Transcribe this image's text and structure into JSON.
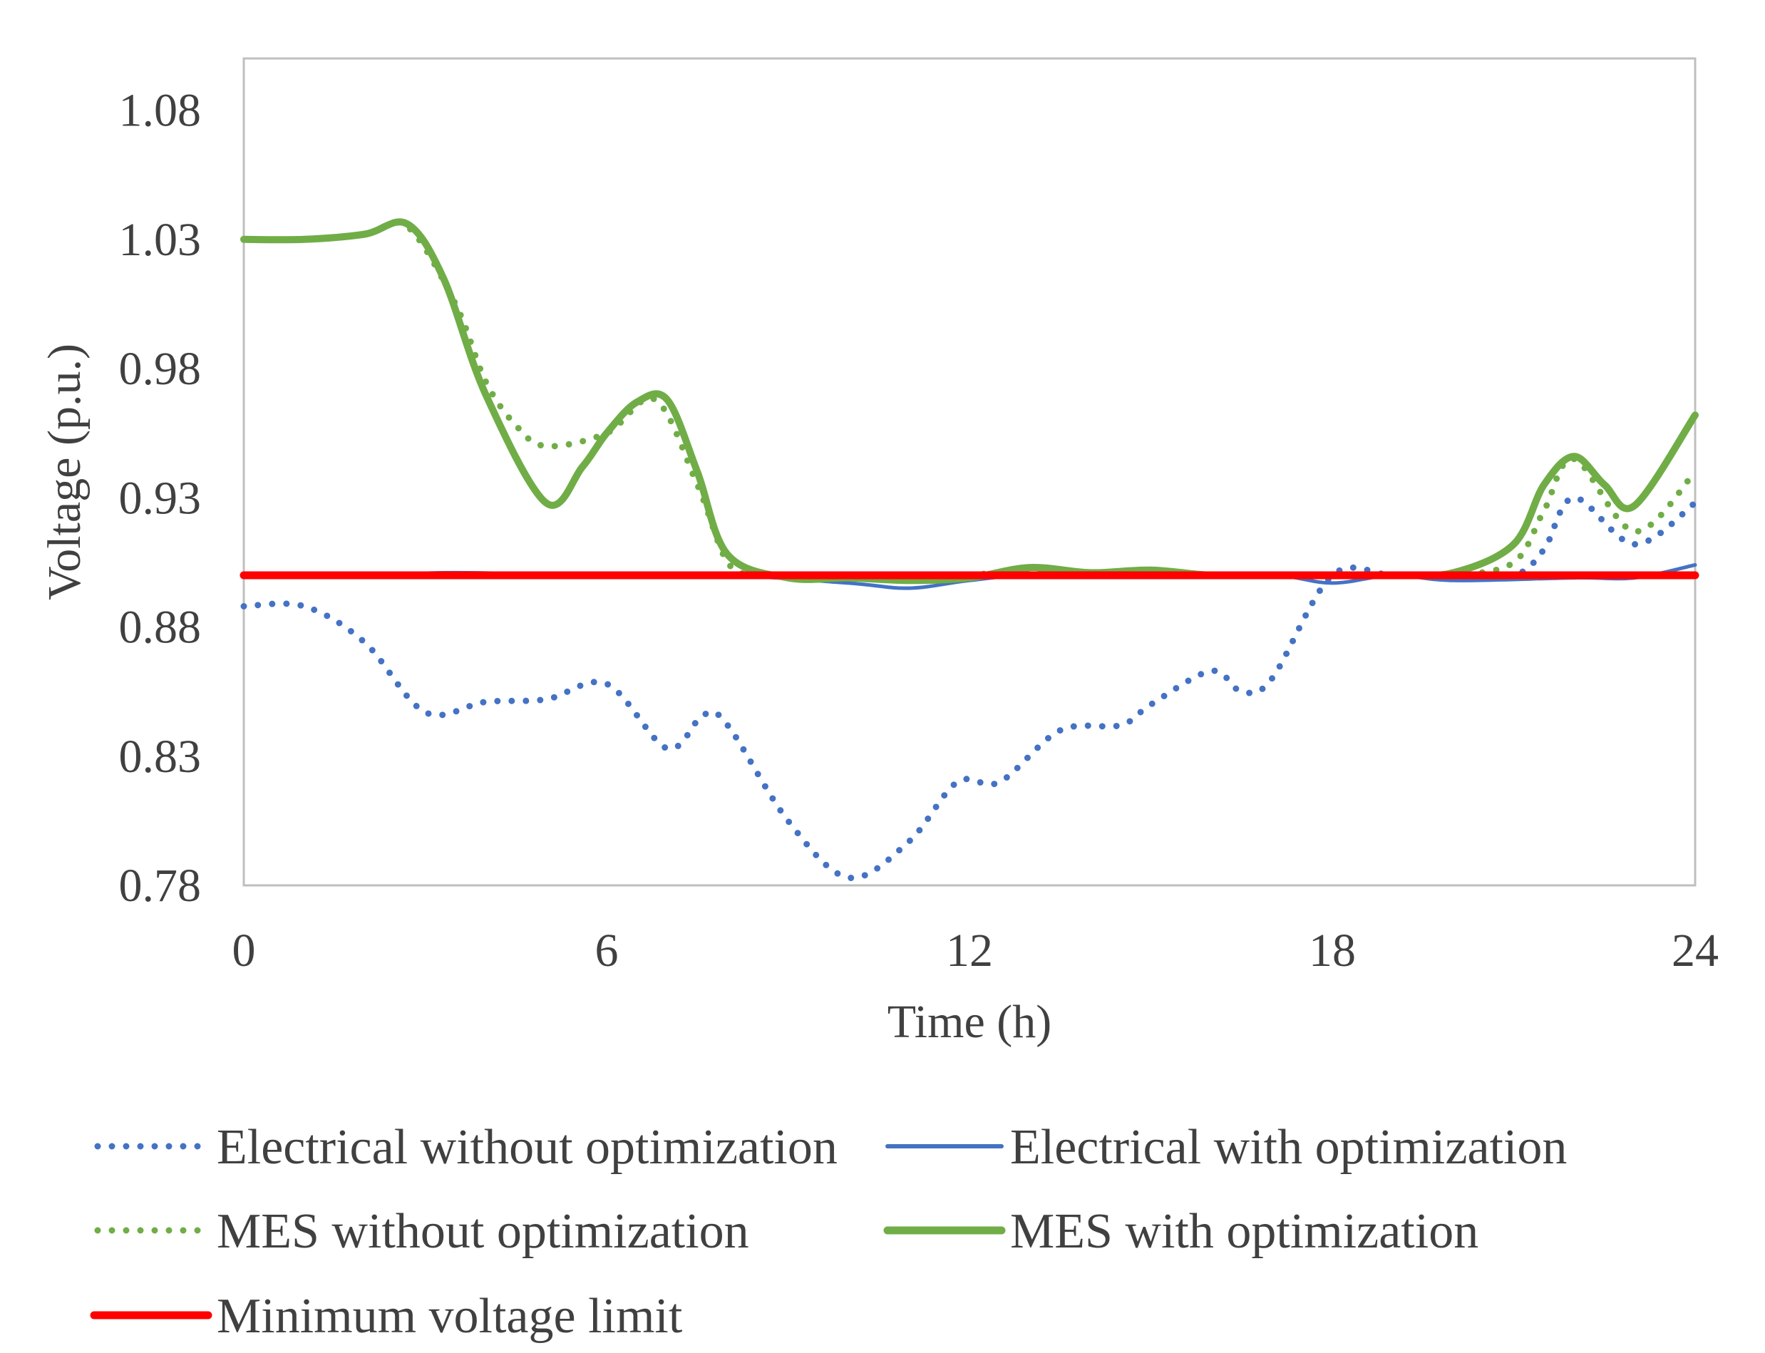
{
  "chart_data": {
    "type": "line",
    "title": "",
    "xlabel": "Time (h)",
    "ylabel": "Voltage (p.u.)",
    "xlim": [
      0,
      24
    ],
    "ylim": [
      0.78,
      1.1
    ],
    "x_ticks": [
      0,
      6,
      12,
      18,
      24
    ],
    "x_tick_labels": [
      "0",
      "6",
      "12",
      "18",
      "24"
    ],
    "y_ticks": [
      0.78,
      0.83,
      0.88,
      0.93,
      0.98,
      1.03,
      1.08
    ],
    "y_tick_labels": [
      "0.78",
      "0.83",
      "0.88",
      "0.93",
      "0.98",
      "1.03",
      "1.08"
    ],
    "grid": false,
    "legend_position": "bottom",
    "series": [
      {
        "name": "Electrical without optimization",
        "color": "#4472C4",
        "style": "dotted",
        "x": [
          0,
          1,
          2,
          3,
          4,
          5,
          6,
          7,
          7.6,
          8,
          9,
          10,
          11,
          11.8,
          12.5,
          13.5,
          14.5,
          15,
          16,
          16.5,
          17,
          18,
          19,
          20,
          21,
          21.5,
          22,
          23,
          24
        ],
        "y": [
          0.888,
          0.888,
          0.874,
          0.847,
          0.851,
          0.852,
          0.858,
          0.833,
          0.846,
          0.842,
          0.805,
          0.783,
          0.797,
          0.82,
          0.82,
          0.84,
          0.842,
          0.85,
          0.863,
          0.855,
          0.86,
          0.9,
          0.9,
          0.9,
          0.9,
          0.91,
          0.93,
          0.912,
          0.928
        ]
      },
      {
        "name": "Electrical with optimization",
        "color": "#4472C4",
        "style": "solid",
        "x": [
          0,
          2,
          3.5,
          6,
          8,
          10,
          11,
          12,
          13,
          15,
          17,
          18,
          19,
          20,
          22,
          23,
          24
        ],
        "y": [
          0.9,
          0.9,
          0.901,
          0.9,
          0.9,
          0.897,
          0.895,
          0.898,
          0.9,
          0.9,
          0.9,
          0.897,
          0.9,
          0.898,
          0.899,
          0.899,
          0.904
        ]
      },
      {
        "name": "MES without optimization",
        "color": "#70AD47",
        "style": "dotted",
        "x": [
          0,
          1,
          2,
          2.7,
          3.5,
          4,
          4.5,
          5,
          6,
          6.8,
          7.5,
          8,
          8.5,
          9,
          10,
          11,
          12,
          13,
          14,
          15,
          16,
          17,
          18,
          19,
          20,
          21,
          21.5,
          22,
          23,
          24
        ],
        "y": [
          1.03,
          1.03,
          1.032,
          1.035,
          1.005,
          0.975,
          0.958,
          0.95,
          0.955,
          0.968,
          0.935,
          0.905,
          0.9,
          0.9,
          0.9,
          0.898,
          0.9,
          0.902,
          0.901,
          0.901,
          0.9,
          0.9,
          0.9,
          0.9,
          0.9,
          0.905,
          0.925,
          0.945,
          0.917,
          0.94
        ]
      },
      {
        "name": "MES with optimization",
        "color": "#70AD47",
        "style": "solid",
        "x": [
          0,
          1,
          2,
          2.7,
          3.3,
          4,
          5,
          5.6,
          6,
          6.5,
          7,
          7.5,
          8,
          9,
          10,
          11,
          12,
          13,
          14,
          15,
          16,
          17,
          18,
          19,
          20,
          21,
          21.5,
          22,
          22.5,
          23,
          24
        ],
        "y": [
          1.03,
          1.03,
          1.032,
          1.036,
          1.015,
          0.97,
          0.928,
          0.942,
          0.955,
          0.967,
          0.968,
          0.94,
          0.908,
          0.899,
          0.899,
          0.898,
          0.899,
          0.903,
          0.901,
          0.902,
          0.9,
          0.9,
          0.9,
          0.9,
          0.901,
          0.912,
          0.935,
          0.946,
          0.935,
          0.927,
          0.962
        ]
      },
      {
        "name": "Minimum voltage limit",
        "color": "#FF0000",
        "style": "solid",
        "x": [
          0,
          24
        ],
        "y": [
          0.9,
          0.9
        ]
      }
    ]
  }
}
